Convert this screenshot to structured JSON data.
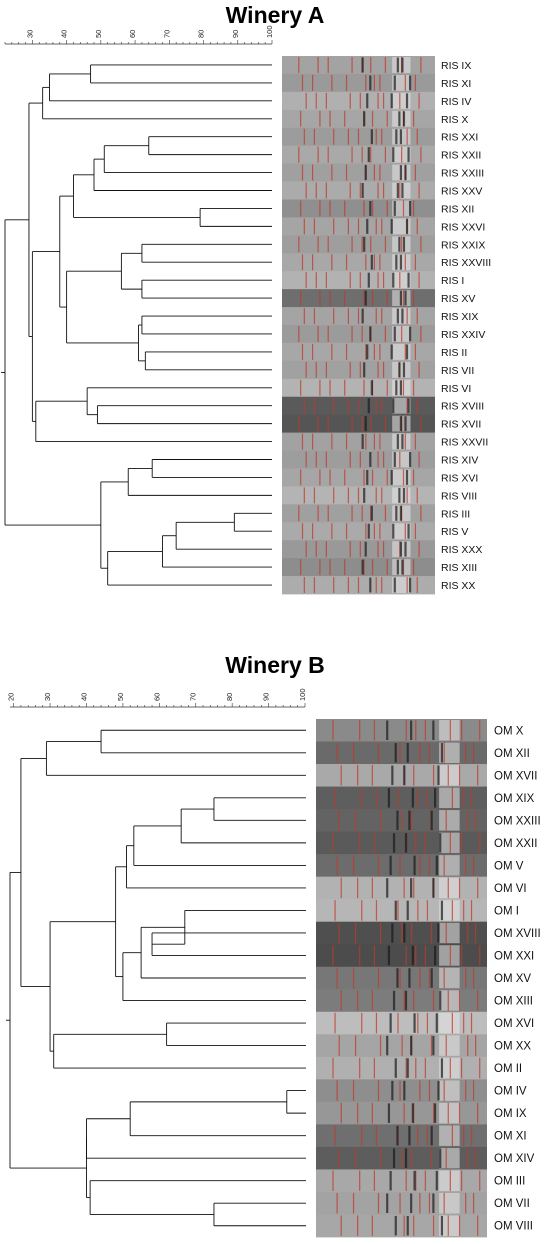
{
  "panels": [
    {
      "id": "A",
      "title": "Winery A",
      "scale_ticks": [
        30,
        40,
        50,
        60,
        70,
        80,
        90,
        100
      ],
      "strains": [
        "RIS IX",
        "RIS XI",
        "RIS IV",
        "RIS X",
        "RIS XXI",
        "RIS XXII",
        "RIS XXIII",
        "RIS XXV",
        "RIS XII",
        "RIS XXVI",
        "RIS XXIX",
        "RIS XXVIII",
        "RIS I",
        "RIS XV",
        "RIS XIX",
        "RIS XXIV",
        "RIS II",
        "RIS VII",
        "RIS VI",
        "RIS XVIII",
        "RIS XVII",
        "RIS XXVII",
        "RIS XIV",
        "RIS XVI",
        "RIS VIII",
        "RIS III",
        "RIS V",
        "RIS XXX",
        "RIS XIII",
        "RIS XX"
      ],
      "band_lane_shades": [
        "#a3a3a3",
        "#9a9a9a",
        "#b0b0b0",
        "#a6a6a6",
        "#9c9c9c",
        "#a9a9a9",
        "#a0a0a0",
        "#ababab",
        "#8f8f8f",
        "#a5a5a5",
        "#9e9e9e",
        "#a8a8a8",
        "#b2b2b2",
        "#6e6e6e",
        "#a4a4a4",
        "#9b9b9b",
        "#a7a7a7",
        "#a1a1a1",
        "#b3b3b3",
        "#5a5a5a",
        "#555555",
        "#a2a2a2",
        "#9d9d9d",
        "#a6a6a6",
        "#b4b4b4",
        "#a0a0a0",
        "#aaaaaa",
        "#999999",
        "#8d8d8d",
        "#acacac"
      ]
    },
    {
      "id": "B",
      "title": "Winery B",
      "scale_ticks": [
        20,
        30,
        40,
        50,
        60,
        70,
        80,
        90,
        100
      ],
      "strains": [
        "OM X",
        "OM XII",
        "OM XVII",
        "OM XIX",
        "OM XXIII",
        "OM XXII",
        "OM V",
        "OM VI",
        "OM I",
        "OM XVIII",
        "OM XXI",
        "OM XV",
        "OM XIII",
        "OM XVI",
        "OM XX",
        "OM II",
        "OM IV",
        "OM IX",
        "OM XI",
        "OM XIV",
        "OM III",
        "OM VII",
        "OM VIII"
      ],
      "band_lane_shades": [
        "#8a8a8a",
        "#6a6a6a",
        "#a9a9a9",
        "#5e5e5e",
        "#636363",
        "#5a5a5a",
        "#6c6c6c",
        "#b2b2b2",
        "#b6b6b6",
        "#4f4f4f",
        "#4c4c4c",
        "#777777",
        "#7c7c7c",
        "#bdbdbd",
        "#a5a5a5",
        "#b0b0b0",
        "#8e8e8e",
        "#979797",
        "#6f6f6f",
        "#5d5d5d",
        "#a8a8a8",
        "#a3a3a3",
        "#a7a7a7"
      ]
    }
  ]
}
